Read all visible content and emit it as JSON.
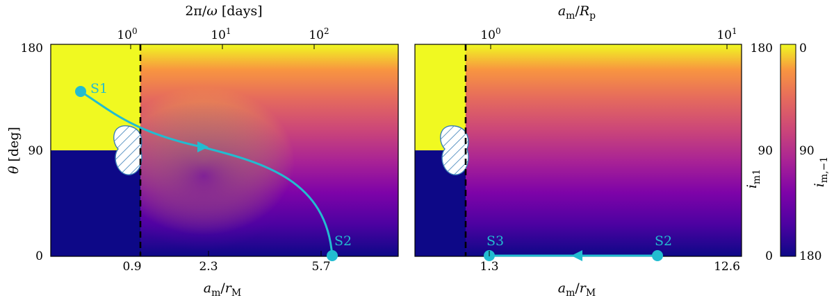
{
  "chart_data": [
    {
      "type": "heatmap",
      "panel": "left",
      "xlabel": "a_m/r_M",
      "ylabel": "θ [deg]",
      "top_xlabel": "2π/ω [days]",
      "x_ticks": [
        "0.9",
        "2.3",
        "5.7"
      ],
      "top_ticks": [
        "10^0",
        "10^1",
        "10^2"
      ],
      "y_ticks": [
        "0",
        "90",
        "180"
      ],
      "ylim": [
        0,
        180
      ],
      "vertical_dashed_line_x": 0.9,
      "grid": false,
      "trajectory": {
        "start_label": "S1",
        "end_label": "S2",
        "color": "#22bcd0"
      }
    },
    {
      "type": "heatmap",
      "panel": "right",
      "xlabel": "a_m/r_M",
      "top_xlabel": "a_m/R_p",
      "x_ticks": [
        "1.3",
        "12.6"
      ],
      "top_ticks": [
        "10^0",
        "10^1"
      ],
      "ylim": [
        0,
        180
      ],
      "grid": false,
      "trajectory": {
        "start_label": "S2",
        "end_label": "S3",
        "color": "#22bcd0"
      },
      "colorbar": {
        "left_label": "i_m1",
        "right_label": "i_m,−1",
        "left_ticks": [
          "0",
          "90",
          "180"
        ],
        "right_ticks": [
          "180",
          "90",
          "0"
        ],
        "colormap": "plasma"
      }
    }
  ]
}
